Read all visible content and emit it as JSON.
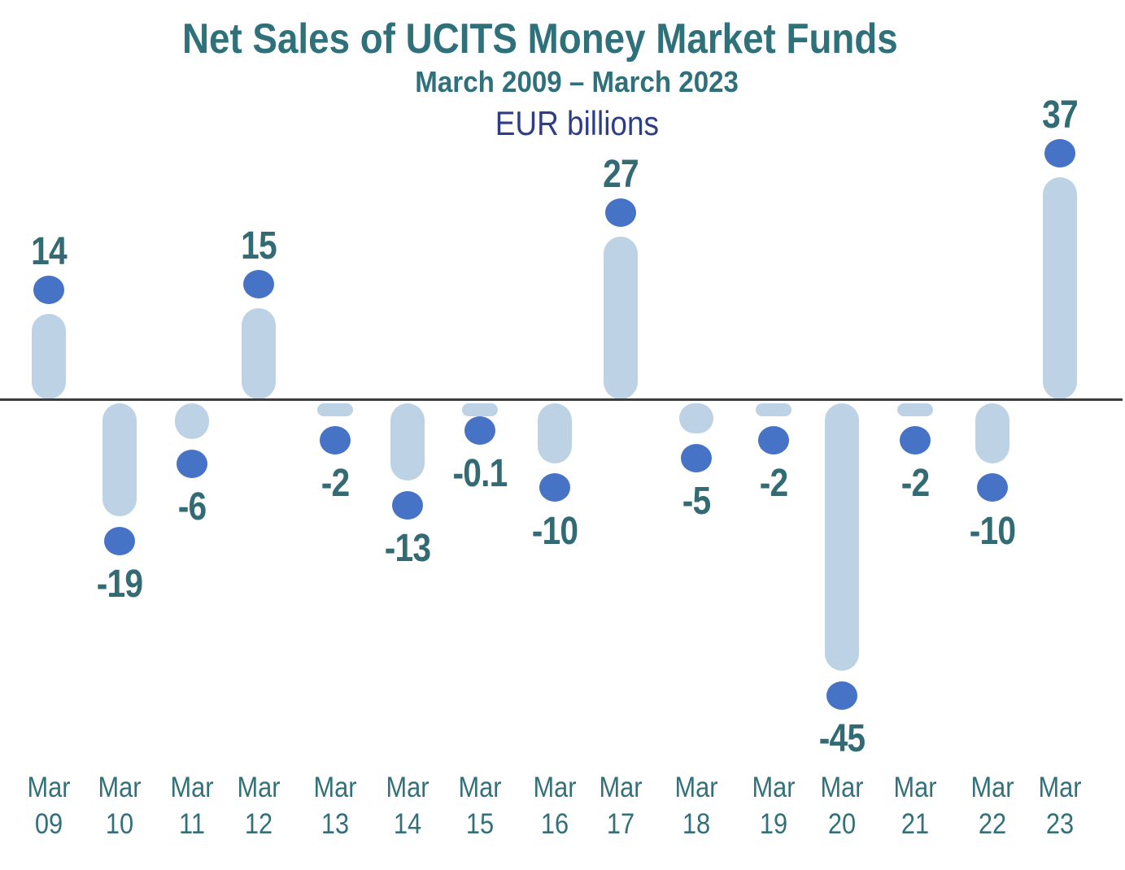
{
  "chart_data": {
    "type": "bar",
    "title": "Net Sales of UCITS Money Market Funds",
    "subtitle": "March 2009 – March 2023",
    "units_label": "EUR billions",
    "categories": [
      "Mar 09",
      "Mar 10",
      "Mar 11",
      "Mar 12",
      "Mar 13",
      "Mar 14",
      "Mar 15",
      "Mar 16",
      "Mar 17",
      "Mar 18",
      "Mar 19",
      "Mar 20",
      "Mar 21",
      "Mar 22",
      "Mar 23"
    ],
    "values": [
      14,
      -19,
      -6,
      15,
      -2,
      -13,
      -0.1,
      -10,
      27,
      -5,
      -2,
      -45,
      -2,
      -10,
      37
    ],
    "value_labels": [
      "14",
      "-19",
      "-6",
      "15",
      "-2",
      "-13",
      "-0.1",
      "-10",
      "27",
      "-5",
      "-2",
      "-45",
      "-2",
      "-10",
      "37"
    ],
    "xlabel": "",
    "ylabel": "",
    "ylim": [
      -50,
      40
    ],
    "grid": false,
    "legend": false,
    "baseline": 0,
    "colors": {
      "capsule": "#bdd3e5",
      "point": "#4673c5",
      "value_label": "#336b75",
      "axis_label": "#337079",
      "title": "#2f717b",
      "subtitle": "#2f717b",
      "units": "#2e3d85",
      "zero_line": "#3c3c3c",
      "background": "#ffffff"
    }
  }
}
